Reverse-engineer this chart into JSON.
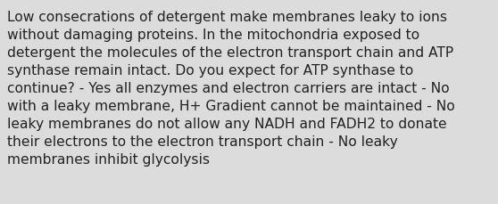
{
  "lines": [
    "Low consecrations of detergent make membranes leaky to ions",
    "without damaging proteins. In the mitochondria exposed to",
    "detergent the molecules of the electron transport chain and ATP",
    "synthase remain intact. Do you expect for ATP synthase to",
    "continue? - Yes all enzymes and electron carriers are intact - No",
    "with a leaky membrane, H+ Gradient cannot be maintained - No",
    "leaky membranes do not allow any NADH and FADH2 to donate",
    "their electrons to the electron transport chain - No leaky",
    "membranes inhibit glycolysis"
  ],
  "background_color": "#dcdcdc",
  "text_color": "#222222",
  "font_size": 11.2,
  "fig_width": 5.58,
  "fig_height": 2.3,
  "dpi": 100
}
